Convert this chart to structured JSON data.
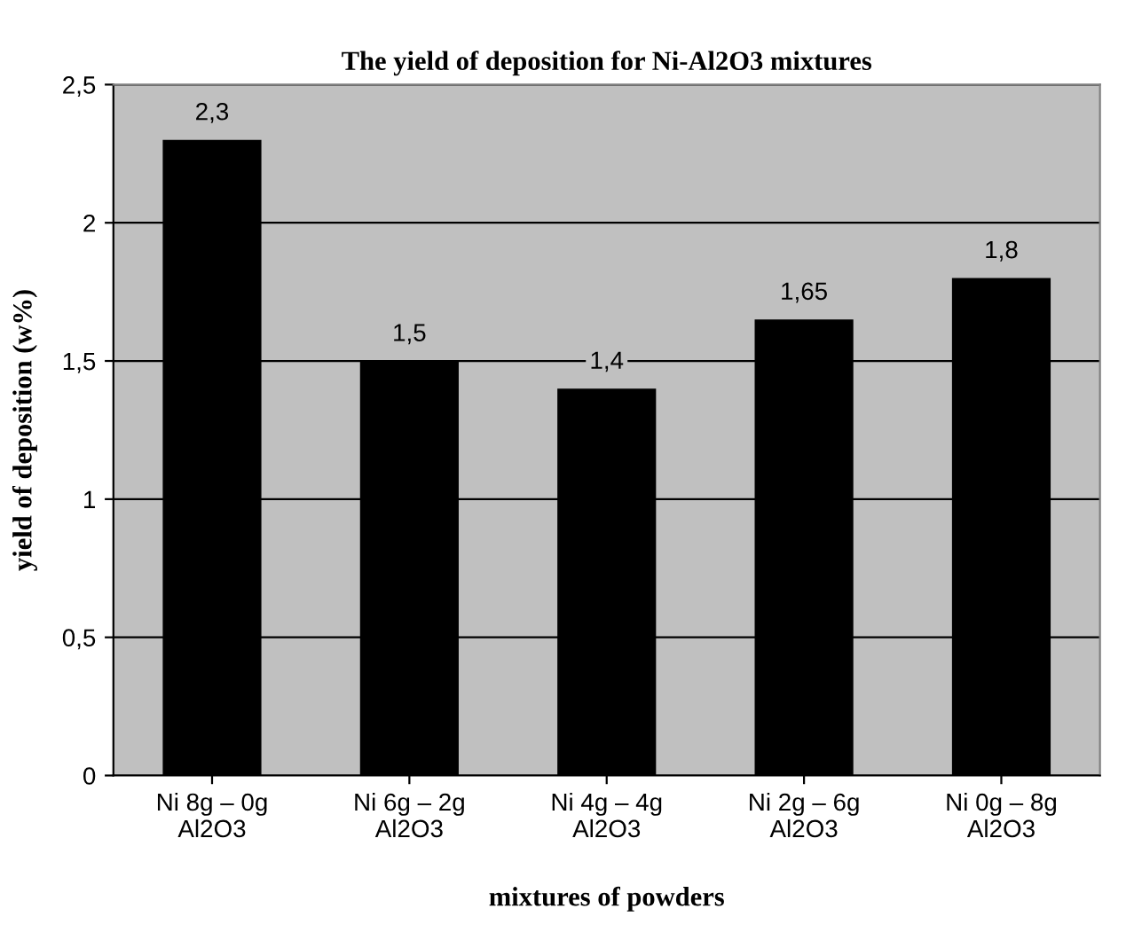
{
  "chart_data": {
    "type": "bar",
    "title": "The yield of deposition for Ni-Al2O3 mixtures",
    "xlabel": "mixtures of powders",
    "ylabel": "yield of deposition (w%)",
    "categories": [
      "Ni 8g – 0g\nAl2O3",
      "Ni 6g – 2g\nAl2O3",
      "Ni 4g – 4g\nAl2O3",
      "Ni 2g – 6g\nAl2O3",
      "Ni 0g – 8g\nAl2O3"
    ],
    "values": [
      2.3,
      1.5,
      1.4,
      1.65,
      1.8
    ],
    "value_labels": [
      "2,3",
      "1,5",
      "1,4",
      "1,65",
      "1,8"
    ],
    "color": "#000000",
    "ylim": [
      0,
      2.5
    ],
    "yticks": [
      0,
      {
        "value": 0.5,
        "label": "0,5"
      },
      1,
      {
        "value": 1.5,
        "label": "1,5"
      },
      2,
      {
        "value": 2.5,
        "label": "2,5"
      }
    ],
    "grid": "y"
  }
}
